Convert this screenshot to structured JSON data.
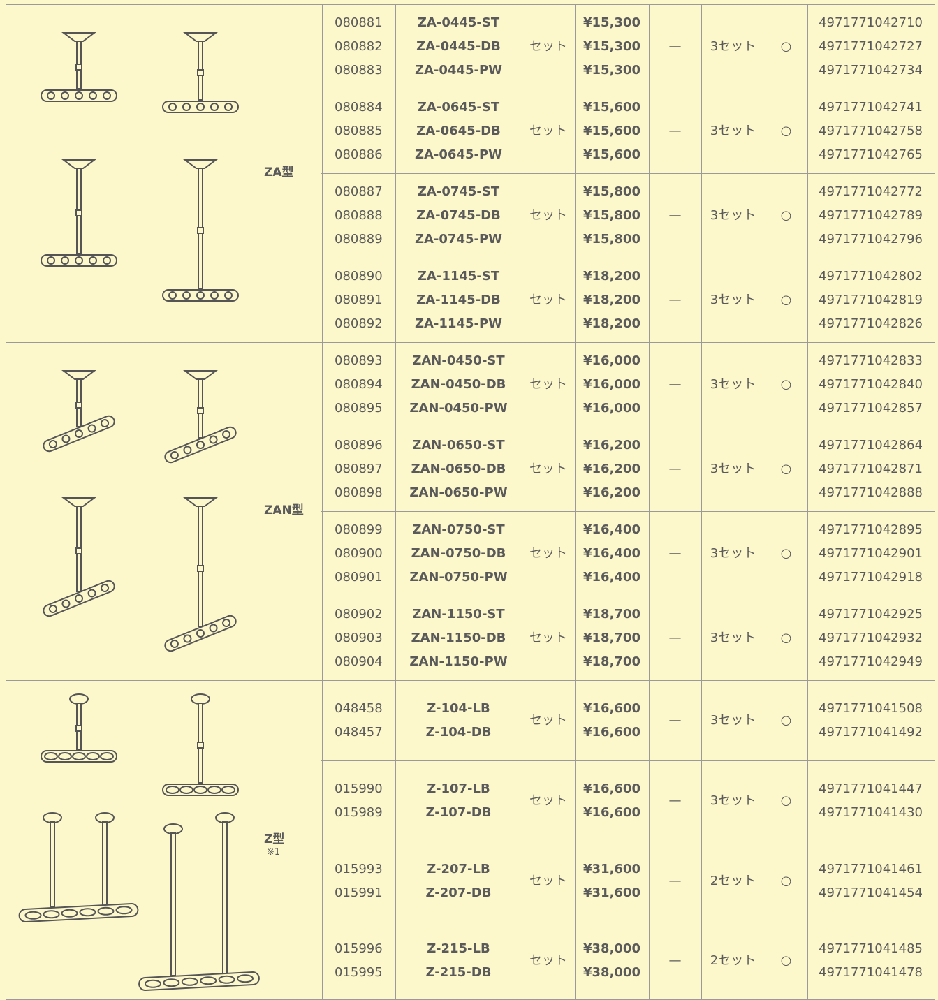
{
  "groups": [
    {
      "label": "ZA型",
      "rows": [
        {
          "codes": [
            "080881",
            "080882",
            "080883"
          ],
          "names": [
            "ZA-0445-ST",
            "ZA-0445-DB",
            "ZA-0445-PW"
          ],
          "unit": "セット",
          "prices": [
            "¥15,300",
            "¥15,300",
            "¥15,300"
          ],
          "dash": "—",
          "sets": "3セット",
          "mark": "○",
          "jan": [
            "4971771042710",
            "4971771042727",
            "4971771042734"
          ]
        },
        {
          "codes": [
            "080884",
            "080885",
            "080886"
          ],
          "names": [
            "ZA-0645-ST",
            "ZA-0645-DB",
            "ZA-0645-PW"
          ],
          "unit": "セット",
          "prices": [
            "¥15,600",
            "¥15,600",
            "¥15,600"
          ],
          "dash": "—",
          "sets": "3セット",
          "mark": "○",
          "jan": [
            "4971771042741",
            "4971771042758",
            "4971771042765"
          ]
        },
        {
          "codes": [
            "080887",
            "080888",
            "080889"
          ],
          "names": [
            "ZA-0745-ST",
            "ZA-0745-DB",
            "ZA-0745-PW"
          ],
          "unit": "セット",
          "prices": [
            "¥15,800",
            "¥15,800",
            "¥15,800"
          ],
          "dash": "—",
          "sets": "3セット",
          "mark": "○",
          "jan": [
            "4971771042772",
            "4971771042789",
            "4971771042796"
          ]
        },
        {
          "codes": [
            "080890",
            "080891",
            "080892"
          ],
          "names": [
            "ZA-1145-ST",
            "ZA-1145-DB",
            "ZA-1145-PW"
          ],
          "unit": "セット",
          "prices": [
            "¥18,200",
            "¥18,200",
            "¥18,200"
          ],
          "dash": "—",
          "sets": "3セット",
          "mark": "○",
          "jan": [
            "4971771042802",
            "4971771042819",
            "4971771042826"
          ]
        }
      ]
    },
    {
      "label": "ZAN型",
      "rows": [
        {
          "codes": [
            "080893",
            "080894",
            "080895"
          ],
          "names": [
            "ZAN-0450-ST",
            "ZAN-0450-DB",
            "ZAN-0450-PW"
          ],
          "unit": "セット",
          "prices": [
            "¥16,000",
            "¥16,000",
            "¥16,000"
          ],
          "dash": "—",
          "sets": "3セット",
          "mark": "○",
          "jan": [
            "4971771042833",
            "4971771042840",
            "4971771042857"
          ]
        },
        {
          "codes": [
            "080896",
            "080897",
            "080898"
          ],
          "names": [
            "ZAN-0650-ST",
            "ZAN-0650-DB",
            "ZAN-0650-PW"
          ],
          "unit": "セット",
          "prices": [
            "¥16,200",
            "¥16,200",
            "¥16,200"
          ],
          "dash": "—",
          "sets": "3セット",
          "mark": "○",
          "jan": [
            "4971771042864",
            "4971771042871",
            "4971771042888"
          ]
        },
        {
          "codes": [
            "080899",
            "080900",
            "080901"
          ],
          "names": [
            "ZAN-0750-ST",
            "ZAN-0750-DB",
            "ZAN-0750-PW"
          ],
          "unit": "セット",
          "prices": [
            "¥16,400",
            "¥16,400",
            "¥16,400"
          ],
          "dash": "—",
          "sets": "3セット",
          "mark": "○",
          "jan": [
            "4971771042895",
            "4971771042901",
            "4971771042918"
          ]
        },
        {
          "codes": [
            "080902",
            "080903",
            "080904"
          ],
          "names": [
            "ZAN-1150-ST",
            "ZAN-1150-DB",
            "ZAN-1150-PW"
          ],
          "unit": "セット",
          "prices": [
            "¥18,700",
            "¥18,700",
            "¥18,700"
          ],
          "dash": "—",
          "sets": "3セット",
          "mark": "○",
          "jan": [
            "4971771042925",
            "4971771042932",
            "4971771042949"
          ]
        }
      ]
    },
    {
      "label": "Z型",
      "note": "※1",
      "rows": [
        {
          "codes": [
            "048458",
            "048457"
          ],
          "names": [
            "Z-104-LB",
            "Z-104-DB"
          ],
          "unit": "セット",
          "prices": [
            "¥16,600",
            "¥16,600"
          ],
          "dash": "—",
          "sets": "3セット",
          "mark": "○",
          "jan": [
            "4971771041508",
            "4971771041492"
          ]
        },
        {
          "codes": [
            "015990",
            "015989"
          ],
          "names": [
            "Z-107-LB",
            "Z-107-DB"
          ],
          "unit": "セット",
          "prices": [
            "¥16,600",
            "¥16,600"
          ],
          "dash": "—",
          "sets": "3セット",
          "mark": "○",
          "jan": [
            "4971771041447",
            "4971771041430"
          ]
        },
        {
          "codes": [
            "015993",
            "015991"
          ],
          "names": [
            "Z-207-LB",
            "Z-207-DB"
          ],
          "unit": "セット",
          "prices": [
            "¥31,600",
            "¥31,600"
          ],
          "dash": "—",
          "sets": "2セット",
          "mark": "○",
          "jan": [
            "4971771041461",
            "4971771041454"
          ]
        },
        {
          "codes": [
            "015996",
            "015995"
          ],
          "names": [
            "Z-215-LB",
            "Z-215-DB"
          ],
          "unit": "セット",
          "prices": [
            "¥38,000",
            "¥38,000"
          ],
          "dash": "—",
          "sets": "2セット",
          "mark": "○",
          "jan": [
            "4971771041485",
            "4971771041478"
          ]
        }
      ]
    }
  ]
}
